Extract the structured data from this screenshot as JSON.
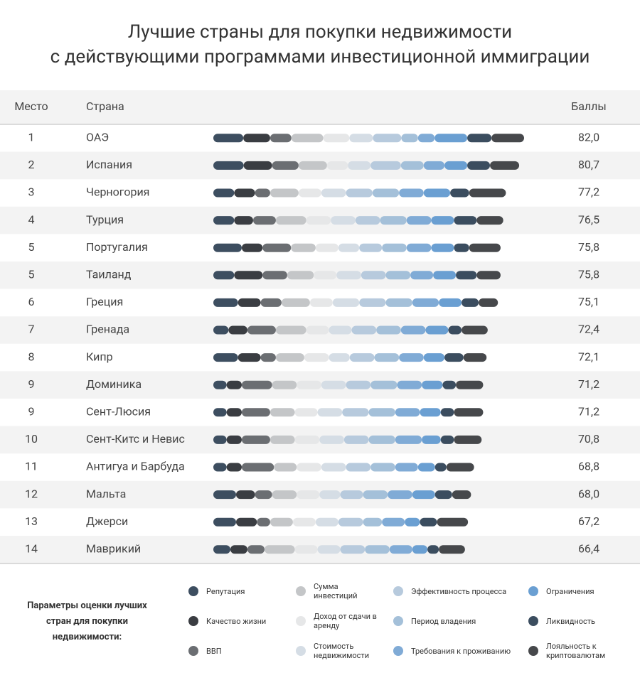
{
  "chart_data": {
    "type": "stacked-bar",
    "title_line1": "Лучшие страны для покупки недвижимости",
    "title_line2": "с действующими программами инвестиционной иммиграции",
    "header_rank": "Место",
    "header_country": "Страна",
    "header_score": "Баллы",
    "ranks": [
      1,
      2,
      3,
      4,
      5,
      5,
      6,
      7,
      8,
      9,
      9,
      10,
      11,
      12,
      13,
      14
    ],
    "categories": [
      "ОАЭ",
      "Испания",
      "Черногория",
      "Турция",
      "Португалия",
      "Таиланд",
      "Греция",
      "Гренада",
      "Кипр",
      "Доминика",
      "Сент-Люсия",
      "Сент-Китс и Невис",
      "Антигуа и Барбуда",
      "Мальта",
      "Джерси",
      "Маврикий"
    ],
    "values": [
      82.0,
      80.7,
      77.2,
      76.5,
      75.8,
      75.8,
      75.1,
      72.4,
      72.1,
      71.2,
      71.2,
      70.8,
      68.8,
      68.0,
      67.2,
      66.4
    ],
    "value_labels": [
      "82,0",
      "80,7",
      "77,2",
      "76,5",
      "75,8",
      "75,8",
      "75,1",
      "72,4",
      "72,1",
      "71,2",
      "71,2",
      "70,8",
      "68,8",
      "68,0",
      "67,2",
      "66,4"
    ],
    "legend_title": "Параметры оценки лучших стран для покупки недвижимости:",
    "series": [
      {
        "name": "Репутация",
        "color": "#3d4e60",
        "values": [
          7.9,
          8.0,
          5.5,
          5.5,
          7.5,
          5.5,
          6.5,
          4.0,
          6.5,
          3.5,
          3.5,
          3.5,
          3.5,
          6.0,
          6.0,
          4.5
        ]
      },
      {
        "name": "Качество жизни",
        "color": "#3a3d42",
        "values": [
          7.1,
          7.5,
          5.5,
          5.0,
          5.5,
          7.5,
          6.0,
          5.0,
          6.0,
          4.0,
          4.0,
          4.0,
          4.0,
          5.0,
          5.5,
          4.5
        ]
      },
      {
        "name": "ВВП",
        "color": "#6b6e72",
        "values": [
          5.6,
          7.0,
          4.0,
          6.0,
          7.5,
          6.5,
          5.5,
          7.5,
          4.0,
          8.0,
          7.5,
          7.5,
          8.5,
          4.5,
          3.5,
          4.5
        ]
      },
      {
        "name": "Сумма инвестиций",
        "color": "#c4c6c8",
        "values": [
          8.4,
          7.5,
          7.5,
          8.0,
          6.5,
          7.0,
          7.5,
          8.0,
          7.5,
          6.5,
          6.5,
          6.5,
          6.0,
          6.5,
          6.0,
          8.0
        ]
      },
      {
        "name": "Доход от сдачи в аренду",
        "color": "#e6e7e8",
        "values": [
          6.9,
          5.5,
          6.0,
          6.5,
          6.0,
          6.0,
          6.0,
          6.0,
          6.5,
          6.5,
          6.0,
          6.5,
          6.5,
          6.0,
          6.0,
          6.0
        ]
      },
      {
        "name": "Стоимость недвижимости",
        "color": "#d5dde5",
        "values": [
          6.2,
          6.0,
          6.5,
          6.5,
          5.5,
          6.5,
          7.0,
          6.0,
          5.5,
          6.5,
          6.5,
          6.5,
          6.5,
          5.5,
          6.0,
          6.0
        ]
      },
      {
        "name": "Эффективность процесса",
        "color": "#b7cadd",
        "values": [
          7.5,
          8.0,
          7.0,
          6.5,
          6.0,
          6.5,
          7.0,
          6.5,
          6.5,
          6.5,
          7.0,
          6.5,
          6.5,
          6.0,
          6.5,
          6.5
        ]
      },
      {
        "name": "Период владения",
        "color": "#a4c0d9",
        "values": [
          4.4,
          6.0,
          7.0,
          7.0,
          6.5,
          6.5,
          7.0,
          6.5,
          6.5,
          7.0,
          7.0,
          7.0,
          6.5,
          6.5,
          5.0,
          6.5
        ]
      },
      {
        "name": "Требования к проживанию",
        "color": "#80abd6",
        "values": [
          4.4,
          5.5,
          6.5,
          6.5,
          6.5,
          6.0,
          7.0,
          6.5,
          6.5,
          6.5,
          6.5,
          7.0,
          6.0,
          6.5,
          6.0,
          6.0
        ]
      },
      {
        "name": "Ограничения",
        "color": "#6a9fd2",
        "values": [
          8.6,
          6.0,
          7.0,
          6.0,
          6.0,
          6.0,
          6.0,
          6.0,
          5.5,
          5.5,
          5.5,
          5.0,
          4.5,
          6.0,
          4.0,
          4.0
        ]
      },
      {
        "name": "Ликвидность",
        "color": "#3b4d5f",
        "values": [
          6.4,
          6.0,
          5.0,
          6.0,
          4.0,
          5.5,
          4.5,
          3.5,
          5.0,
          3.5,
          3.5,
          3.5,
          3.0,
          4.5,
          4.5,
          3.0
        ]
      },
      {
        "name": "Лояльность к криптовалютам",
        "color": "#46484b",
        "values": [
          8.6,
          7.7,
          9.7,
          7.0,
          8.3,
          6.3,
          5.1,
          6.9,
          6.1,
          7.2,
          7.7,
          7.3,
          7.3,
          5.0,
          8.2,
          6.9
        ]
      }
    ]
  }
}
